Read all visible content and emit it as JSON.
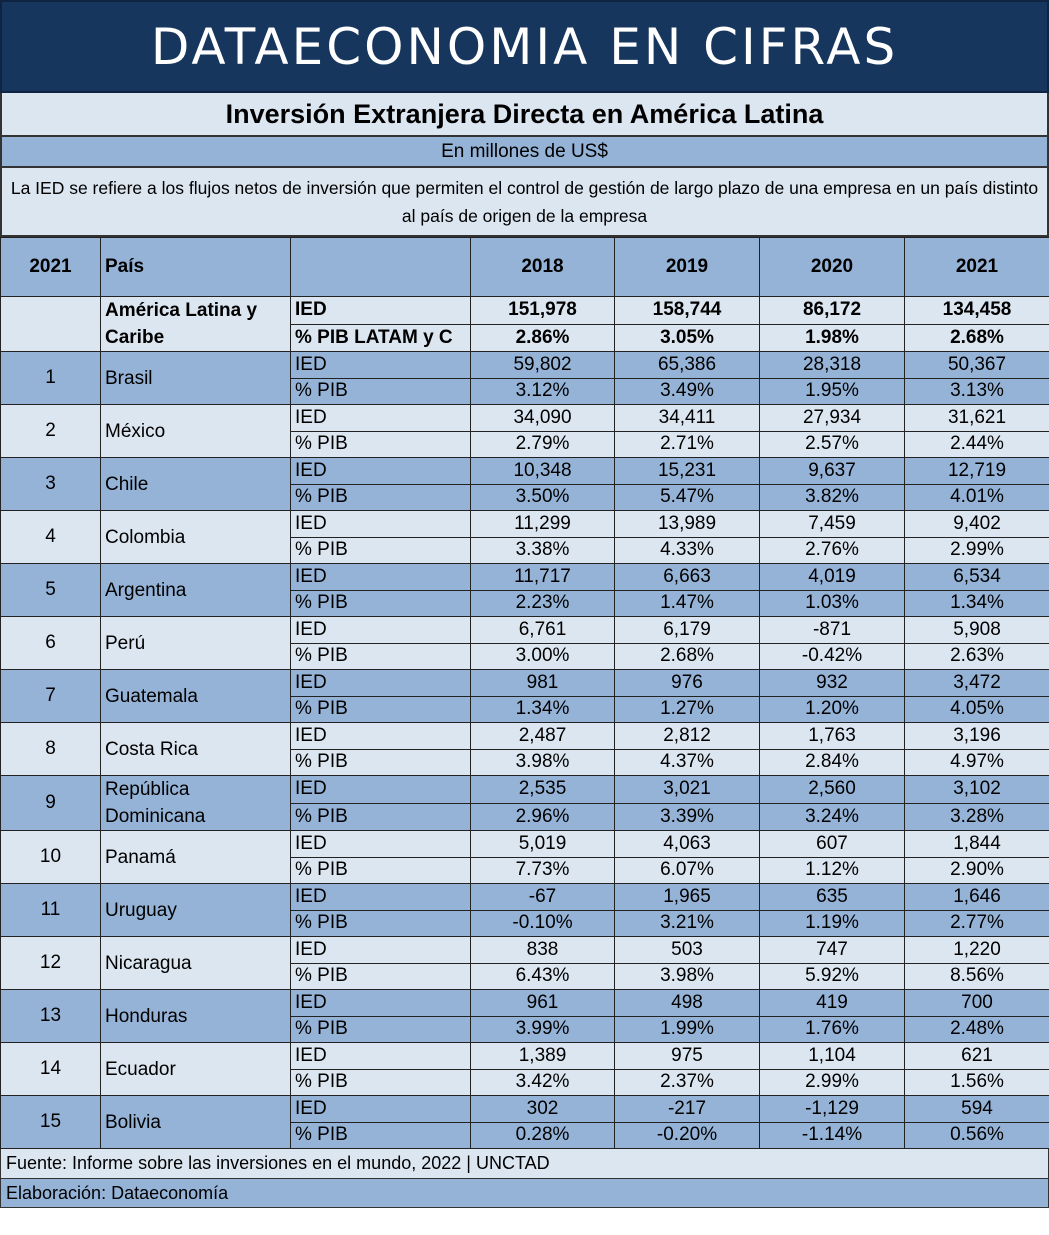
{
  "banner": "DATAECONOMIA EN CIFRAS",
  "title": "Inversión Extranjera Directa en América Latina",
  "units": "En millones de US$",
  "description": "La IED se refiere a los flujos netos de inversión que permiten el control de gestión de largo plazo de una empresa en un país distinto al país de origen de la empresa",
  "header": {
    "rank": "2021",
    "country": "País",
    "metric": "",
    "years": [
      "2018",
      "2019",
      "2020",
      "2021"
    ]
  },
  "total": {
    "country": "América Latina y Caribe",
    "ied_label": "IED",
    "pib_label": "% PIB LATAM y C",
    "ied": [
      "151,978",
      "158,744",
      "86,172",
      "134,458"
    ],
    "pib": [
      "2.86%",
      "3.05%",
      "1.98%",
      "2.68%"
    ]
  },
  "labels": {
    "ied": "IED",
    "pib": "% PIB"
  },
  "rows": [
    {
      "rank": "1",
      "country": "Brasil",
      "ied": [
        "59,802",
        "65,386",
        "28,318",
        "50,367"
      ],
      "pib": [
        "3.12%",
        "3.49%",
        "1.95%",
        "3.13%"
      ]
    },
    {
      "rank": "2",
      "country": "México",
      "ied": [
        "34,090",
        "34,411",
        "27,934",
        "31,621"
      ],
      "pib": [
        "2.79%",
        "2.71%",
        "2.57%",
        "2.44%"
      ]
    },
    {
      "rank": "3",
      "country": "Chile",
      "ied": [
        "10,348",
        "15,231",
        "9,637",
        "12,719"
      ],
      "pib": [
        "3.50%",
        "5.47%",
        "3.82%",
        "4.01%"
      ]
    },
    {
      "rank": "4",
      "country": "Colombia",
      "ied": [
        "11,299",
        "13,989",
        "7,459",
        "9,402"
      ],
      "pib": [
        "3.38%",
        "4.33%",
        "2.76%",
        "2.99%"
      ]
    },
    {
      "rank": "5",
      "country": "Argentina",
      "ied": [
        "11,717",
        "6,663",
        "4,019",
        "6,534"
      ],
      "pib": [
        "2.23%",
        "1.47%",
        "1.03%",
        "1.34%"
      ]
    },
    {
      "rank": "6",
      "country": "Perú",
      "ied": [
        "6,761",
        "6,179",
        "-871",
        "5,908"
      ],
      "pib": [
        "3.00%",
        "2.68%",
        "-0.42%",
        "2.63%"
      ]
    },
    {
      "rank": "7",
      "country": "Guatemala",
      "ied": [
        "981",
        "976",
        "932",
        "3,472"
      ],
      "pib": [
        "1.34%",
        "1.27%",
        "1.20%",
        "4.05%"
      ]
    },
    {
      "rank": "8",
      "country": "Costa Rica",
      "ied": [
        "2,487",
        "2,812",
        "1,763",
        "3,196"
      ],
      "pib": [
        "3.98%",
        "4.37%",
        "2.84%",
        "4.97%"
      ]
    },
    {
      "rank": "9",
      "country": "República Dominicana",
      "ied": [
        "2,535",
        "3,021",
        "2,560",
        "3,102"
      ],
      "pib": [
        "2.96%",
        "3.39%",
        "3.24%",
        "3.28%"
      ]
    },
    {
      "rank": "10",
      "country": "Panamá",
      "ied": [
        "5,019",
        "4,063",
        "607",
        "1,844"
      ],
      "pib": [
        "7.73%",
        "6.07%",
        "1.12%",
        "2.90%"
      ]
    },
    {
      "rank": "11",
      "country": "Uruguay",
      "ied": [
        "-67",
        "1,965",
        "635",
        "1,646"
      ],
      "pib": [
        "-0.10%",
        "3.21%",
        "1.19%",
        "2.77%"
      ]
    },
    {
      "rank": "12",
      "country": "Nicaragua",
      "ied": [
        "838",
        "503",
        "747",
        "1,220"
      ],
      "pib": [
        "6.43%",
        "3.98%",
        "5.92%",
        "8.56%"
      ]
    },
    {
      "rank": "13",
      "country": "Honduras",
      "ied": [
        "961",
        "498",
        "419",
        "700"
      ],
      "pib": [
        "3.99%",
        "1.99%",
        "1.76%",
        "2.48%"
      ]
    },
    {
      "rank": "14",
      "country": "Ecuador",
      "ied": [
        "1,389",
        "975",
        "1,104",
        "621"
      ],
      "pib": [
        "3.42%",
        "2.37%",
        "2.99%",
        "1.56%"
      ]
    },
    {
      "rank": "15",
      "country": "Bolivia",
      "ied": [
        "302",
        "-217",
        "-1,129",
        "594"
      ],
      "pib": [
        "0.28%",
        "-0.20%",
        "-1.14%",
        "0.56%"
      ]
    }
  ],
  "footer": {
    "source": "Fuente: Informe sobre las inversiones en el mundo, 2022 | UNCTAD",
    "credit": "Elaboración: Dataeconomía"
  },
  "colors": {
    "navy": "#17365d",
    "light": "#dce6f1",
    "blue": "#95b3d7"
  }
}
